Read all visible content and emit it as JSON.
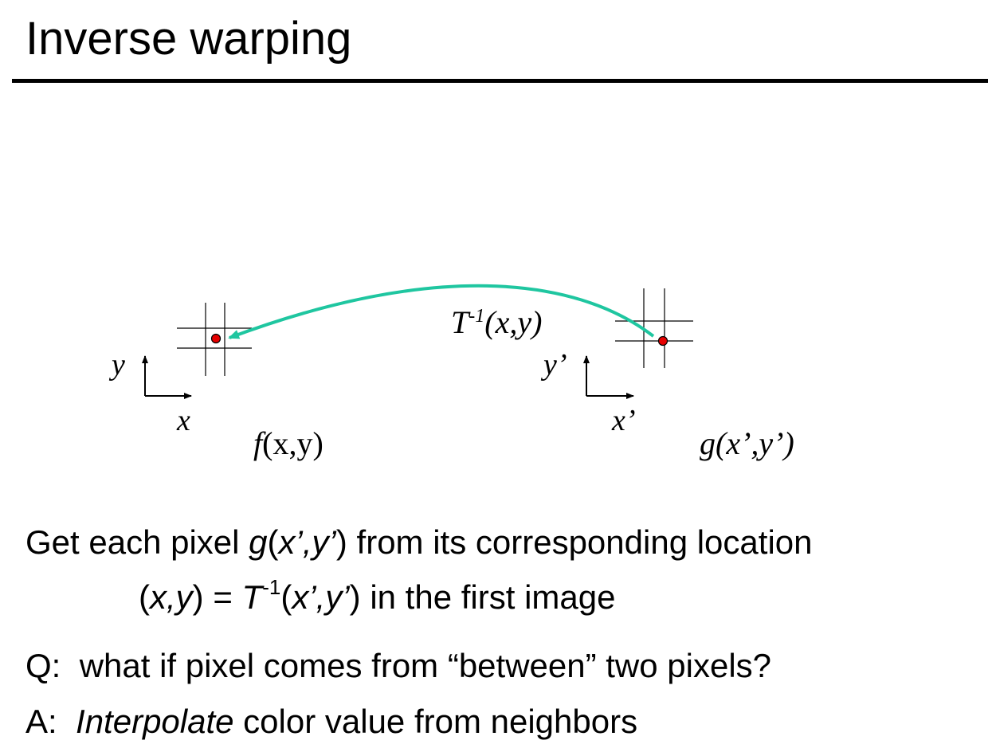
{
  "slide": {
    "title": "Inverse warping"
  },
  "diagram": {
    "left_axis": {
      "y_label": "y",
      "x_label": "x"
    },
    "right_axis": {
      "y_label": "y’",
      "x_label": "x’"
    },
    "left_function": {
      "name": "f",
      "args": "(x,y)"
    },
    "right_function": {
      "name": "g",
      "args": "(x’,y’)"
    },
    "transform": {
      "name": "T",
      "exponent": "-1",
      "args": "(x,y)"
    },
    "colors": {
      "arrow": "#1fc6a0",
      "point": "#e60000",
      "grid": "#000000"
    }
  },
  "text": {
    "line1": {
      "prefix": "Get each pixel ",
      "func": "g",
      "args": "(x’,y’)",
      "suffix": " from its corresponding location"
    },
    "line2": {
      "open": "(",
      "xy": "x,y",
      "close_eq": ") = ",
      "T": "T",
      "exp": "-1",
      "args": "(x’,y’)",
      "suffix": " in the first image"
    },
    "q": {
      "label": "Q:",
      "text": "what if pixel comes from “between” two pixels?"
    },
    "a": {
      "label": "A:",
      "emph": "Interpolate",
      "text": " color value from neighbors"
    }
  }
}
